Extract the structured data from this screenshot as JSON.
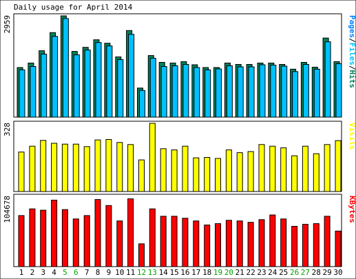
{
  "chart_data": {
    "title": "Daily usage for April 2014",
    "x": [
      "1",
      "2",
      "3",
      "4",
      "5",
      "6",
      "7",
      "8",
      "9",
      "10",
      "11",
      "12",
      "13",
      "14",
      "15",
      "16",
      "17",
      "18",
      "19",
      "20",
      "21",
      "22",
      "23",
      "24",
      "25",
      "26",
      "27",
      "28",
      "29",
      "30"
    ],
    "weekend_days": [
      "5",
      "6",
      "12",
      "13",
      "19",
      "20",
      "26",
      "27"
    ],
    "panels": [
      {
        "type": "bar",
        "ymax_label": "2959",
        "ymax": 2959,
        "legend": [
          "Pages",
          "Files",
          "Hits"
        ],
        "legend_separator": "/",
        "series": [
          {
            "name": "Hits",
            "color": "#00805c",
            "values": [
              1450,
              1580,
              1940,
              2470,
              2959,
              1920,
              2040,
              2260,
              2160,
              1760,
              2530,
              850,
              1800,
              1600,
              1580,
              1620,
              1530,
              1450,
              1450,
              1580,
              1540,
              1540,
              1580,
              1580,
              1540,
              1400,
              1600,
              1460,
              2310,
              1620
            ]
          },
          {
            "name": "Files",
            "color": "#00c0ff",
            "values": [
              1380,
              1480,
              1840,
              2360,
              2880,
              1820,
              1960,
              2180,
              2080,
              1680,
              2420,
              780,
              1720,
              1480,
              1500,
              1540,
              1450,
              1380,
              1410,
              1500,
              1470,
              1470,
              1530,
              1520,
              1490,
              1330,
              1540,
              1400,
              2200,
              1560
            ]
          }
        ]
      },
      {
        "type": "bar",
        "ymax_label": "328",
        "ymax": 328,
        "legend": [
          "Visits"
        ],
        "series": [
          {
            "name": "Visits",
            "color": "#ffff00",
            "values": [
              190,
              218,
              246,
              232,
              228,
              228,
              216,
              248,
              250,
              236,
              226,
              152,
              328,
              206,
              200,
              218,
              162,
              164,
              159,
              200,
              187,
              192,
              226,
              218,
              210,
              172,
              218,
              182,
              226,
              245
            ]
          }
        ]
      },
      {
        "type": "bar",
        "ymax_label": "104678",
        "ymax": 104678,
        "legend": [
          "KBytes"
        ],
        "series": [
          {
            "name": "KBytes",
            "color": "#ff0000",
            "values": [
              76000,
              86000,
              84000,
              99000,
              85000,
              71000,
              76000,
              100000,
              91000,
              68000,
              101000,
              34000,
              86000,
              75000,
              75000,
              72000,
              68000,
              62000,
              64000,
              69000,
              68000,
              66000,
              70000,
              77000,
              71000,
              60000,
              63000,
              64000,
              75000,
              53000
            ]
          }
        ]
      }
    ],
    "colors": {
      "pages": "#0080ff",
      "files": "#00c0ff",
      "hits": "#00805c",
      "visits": "#ffff00",
      "kbytes": "#ff0000",
      "weekday_label": "#000000",
      "weekend_label": "#00a000"
    }
  }
}
